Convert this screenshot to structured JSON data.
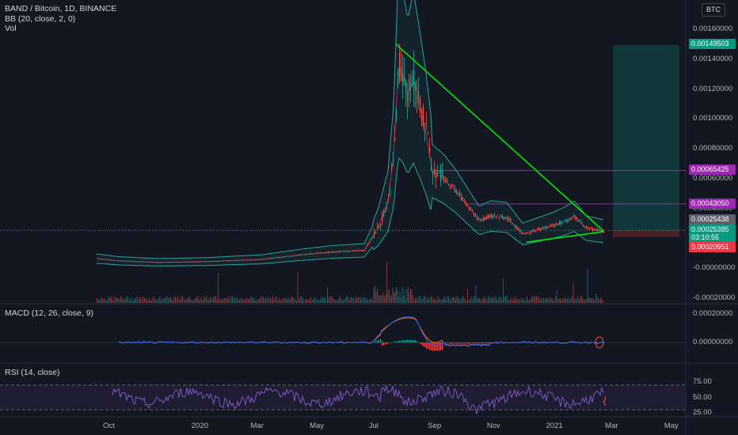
{
  "legend": {
    "title": "BAND / Bitcoin, 1D, BINANCE",
    "bb": "BB (20, close, 2, 0)",
    "vol": "Vol",
    "macd": "MACD (12, 26, close, 9)",
    "rsi": "RSI (14, close)"
  },
  "currency_button": "BTC",
  "price_axis": {
    "ticks": [
      {
        "label": "0.00160000",
        "value": 0.0016
      },
      {
        "label": "0.00140000",
        "value": 0.0014
      },
      {
        "label": "0.00120000",
        "value": 0.0012
      },
      {
        "label": "0.00100000",
        "value": 0.001
      },
      {
        "label": "0.00080000",
        "value": 0.0008
      },
      {
        "label": "0.00060000",
        "value": 0.0006
      },
      {
        "label": "0.00040000",
        "value": 0.0004
      },
      {
        "label": "-0.00000000",
        "value": 0.0
      },
      {
        "label": "-0.00020000",
        "value": -0.0002
      }
    ]
  },
  "price_tags": [
    {
      "label": "0.00149503",
      "value": 0.00149503,
      "color": "#089981"
    },
    {
      "label": "0.00065425",
      "value": 0.00065425,
      "color": "#9c27b0"
    },
    {
      "label": "0.00043050",
      "value": 0.0004305,
      "color": "#9c27b0"
    },
    {
      "label": "0.00025438",
      "value": 0.00025438,
      "color": "#5d606b"
    },
    {
      "label": "0.00025385",
      "value": 0.00025385,
      "color": "#089981"
    },
    {
      "label": "03:10:55",
      "value": 0.00023,
      "color": "#089981"
    },
    {
      "label": "0.00020951",
      "value": 0.00020951,
      "color": "#f23645"
    }
  ],
  "macd_axis": {
    "ticks": [
      {
        "label": "0.00020000",
        "value": 0.0002
      },
      {
        "label": "0.00000000",
        "value": 0.0
      }
    ]
  },
  "rsi_axis": {
    "ticks": [
      {
        "label": "75.00",
        "value": 75
      },
      {
        "label": "50.00",
        "value": 50
      },
      {
        "label": "25.00",
        "value": 25
      }
    ]
  },
  "time_axis": {
    "labels": [
      {
        "label": "Oct",
        "t": 0
      },
      {
        "label": "2020",
        "t": 3
      },
      {
        "label": "Mar",
        "t": 5
      },
      {
        "label": "May",
        "t": 7
      },
      {
        "label": "Jul",
        "t": 9
      },
      {
        "label": "Sep",
        "t": 11
      },
      {
        "label": "Nov",
        "t": 13
      },
      {
        "label": "2021",
        "t": 15
      },
      {
        "label": "Mar",
        "t": 17
      },
      {
        "label": "May",
        "t": 19
      }
    ]
  },
  "colors": {
    "background": "#131722",
    "up": "#26a69a",
    "down": "#ef5350",
    "trendline": "#00e600",
    "level": "#9c27b0",
    "bb_basis": "#c2185b",
    "bb_band": "#26a69a",
    "macd": "#2962ff",
    "signal": "#ff6d00",
    "rsi": "#7e57c2"
  }
}
